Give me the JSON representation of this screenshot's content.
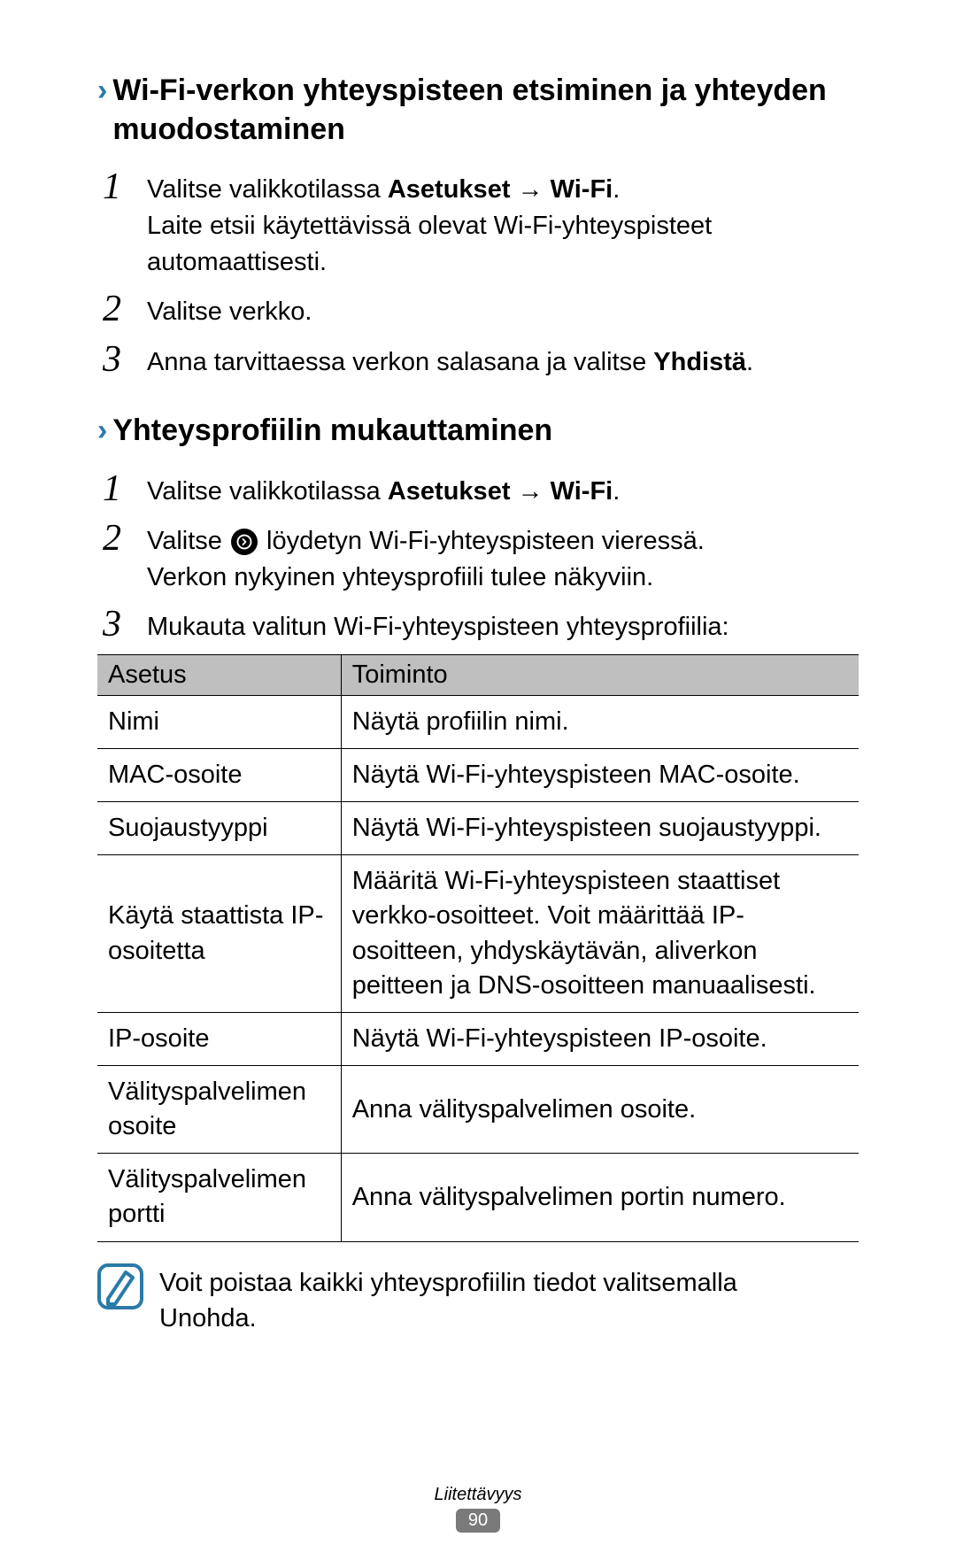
{
  "section1": {
    "heading": "Wi-Fi-verkon yhteyspisteen etsiminen ja yhteyden muodostaminen",
    "steps": [
      {
        "num": "1",
        "pre": "Valitse valikkotilassa ",
        "bold1": "Asetukset",
        "mid": " → ",
        "bold2": "Wi-Fi",
        "after": ".",
        "line2": "Laite etsii käytettävissä olevat Wi-Fi-yhteyspisteet automaattisesti."
      },
      {
        "num": "2",
        "plain": "Valitse verkko."
      },
      {
        "num": "3",
        "pre": "Anna tarvittaessa verkon salasana ja valitse ",
        "bold1": "Yhdistä",
        "after": "."
      }
    ]
  },
  "section2": {
    "heading": "Yhteysprofiilin mukauttaminen",
    "steps": [
      {
        "num": "1",
        "pre": "Valitse valikkotilassa ",
        "bold1": "Asetukset",
        "mid": " → ",
        "bold2": "Wi-Fi",
        "after": "."
      },
      {
        "num": "2",
        "preicon": "Valitse ",
        "posticon": " löydetyn Wi-Fi-yhteyspisteen vieressä.",
        "line2": "Verkon nykyinen yhteysprofiili tulee näkyviin."
      },
      {
        "num": "3",
        "plain": "Mukauta valitun Wi-Fi-yhteyspisteen yhteysprofiilia:"
      }
    ]
  },
  "table": {
    "header": {
      "col1": "Asetus",
      "col2": "Toiminto"
    },
    "rows": [
      {
        "c1": "Nimi",
        "c2": "Näytä profiilin nimi."
      },
      {
        "c1": "MAC-osoite",
        "c2": "Näytä Wi-Fi-yhteyspisteen MAC-osoite."
      },
      {
        "c1": "Suojaustyyppi",
        "c2": "Näytä Wi-Fi-yhteyspisteen suojaustyyppi."
      },
      {
        "c1": "Käytä staattista IP-osoitetta",
        "c2": "Määritä Wi-Fi-yhteyspisteen staattiset verkko-osoitteet. Voit määrittää IP-osoitteen, yhdyskäytävän, aliverkon peitteen ja DNS-osoitteen manuaalisesti."
      },
      {
        "c1": "IP-osoite",
        "c2": "Näytä Wi-Fi-yhteyspisteen IP-osoite."
      },
      {
        "c1": "Välityspalvelimen osoite",
        "c2": "Anna välityspalvelimen osoite."
      },
      {
        "c1": "Välityspalvelimen portti",
        "c2": "Anna välityspalvelimen portin numero."
      }
    ]
  },
  "note": {
    "pre": "Voit poistaa kaikki yhteysprofiilin tiedot valitsemalla ",
    "bold": "Unohda",
    "after": "."
  },
  "footer": {
    "label": "Liitettävyys",
    "page": "90"
  },
  "colors": {
    "chevron": "#2a7aa8",
    "note_border": "#2a7aa8",
    "table_header_bg": "#bfbfbf"
  }
}
